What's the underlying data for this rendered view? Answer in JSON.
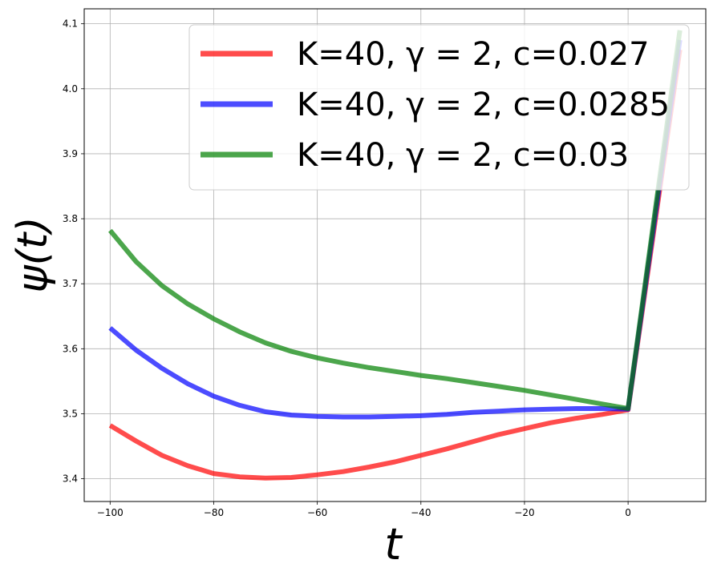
{
  "chart_data": {
    "type": "line",
    "title": "",
    "xlabel": "t",
    "ylabel": "ψ(t)",
    "xlim": [
      -105,
      15
    ],
    "ylim": [
      3.365,
      4.123
    ],
    "x_ticks": [
      -100,
      -80,
      -60,
      -40,
      -20,
      0
    ],
    "x_tick_labels": [
      "−100",
      "−80",
      "−60",
      "−40",
      "−20",
      "0"
    ],
    "y_ticks": [
      3.4,
      3.5,
      3.6,
      3.7,
      3.8,
      3.9,
      4.0,
      4.1
    ],
    "y_tick_labels": [
      "3.4",
      "3.5",
      "3.6",
      "3.7",
      "3.8",
      "3.9",
      "4.0",
      "4.1"
    ],
    "grid": true,
    "legend_position": "top-right",
    "series": [
      {
        "name": "K=40, γ = 2, c=0.027",
        "color": "#ff0000",
        "x": [
          -100,
          -95,
          -90,
          -85,
          -80,
          -75,
          -70,
          -65,
          -60,
          -55,
          -50,
          -45,
          -40,
          -35,
          -30,
          -25,
          -20,
          -15,
          -10,
          -5,
          0,
          10
        ],
        "y": [
          3.482,
          3.458,
          3.436,
          3.42,
          3.408,
          3.403,
          3.401,
          3.402,
          3.406,
          3.411,
          3.418,
          3.426,
          3.436,
          3.446,
          3.457,
          3.468,
          3.477,
          3.486,
          3.493,
          3.499,
          3.506,
          4.06
        ]
      },
      {
        "name": "K=40, γ = 2, c=0.0285",
        "color": "#0000ff",
        "x": [
          -100,
          -95,
          -90,
          -85,
          -80,
          -75,
          -70,
          -65,
          -60,
          -55,
          -50,
          -45,
          -40,
          -35,
          -30,
          -25,
          -20,
          -15,
          -10,
          -5,
          0,
          10
        ],
        "y": [
          3.632,
          3.598,
          3.57,
          3.546,
          3.527,
          3.513,
          3.503,
          3.498,
          3.496,
          3.495,
          3.495,
          3.496,
          3.497,
          3.499,
          3.502,
          3.504,
          3.506,
          3.507,
          3.508,
          3.508,
          3.507,
          4.075
        ]
      },
      {
        "name": "K=40, γ = 2, c=0.03",
        "color": "#008000",
        "x": [
          -100,
          -95,
          -90,
          -85,
          -80,
          -75,
          -70,
          -65,
          -60,
          -55,
          -50,
          -45,
          -40,
          -35,
          -30,
          -25,
          -20,
          -15,
          -10,
          -5,
          0,
          10
        ],
        "y": [
          3.782,
          3.734,
          3.697,
          3.669,
          3.646,
          3.626,
          3.609,
          3.596,
          3.586,
          3.578,
          3.571,
          3.565,
          3.559,
          3.554,
          3.548,
          3.542,
          3.536,
          3.529,
          3.522,
          3.515,
          3.508,
          4.09
        ]
      }
    ]
  }
}
